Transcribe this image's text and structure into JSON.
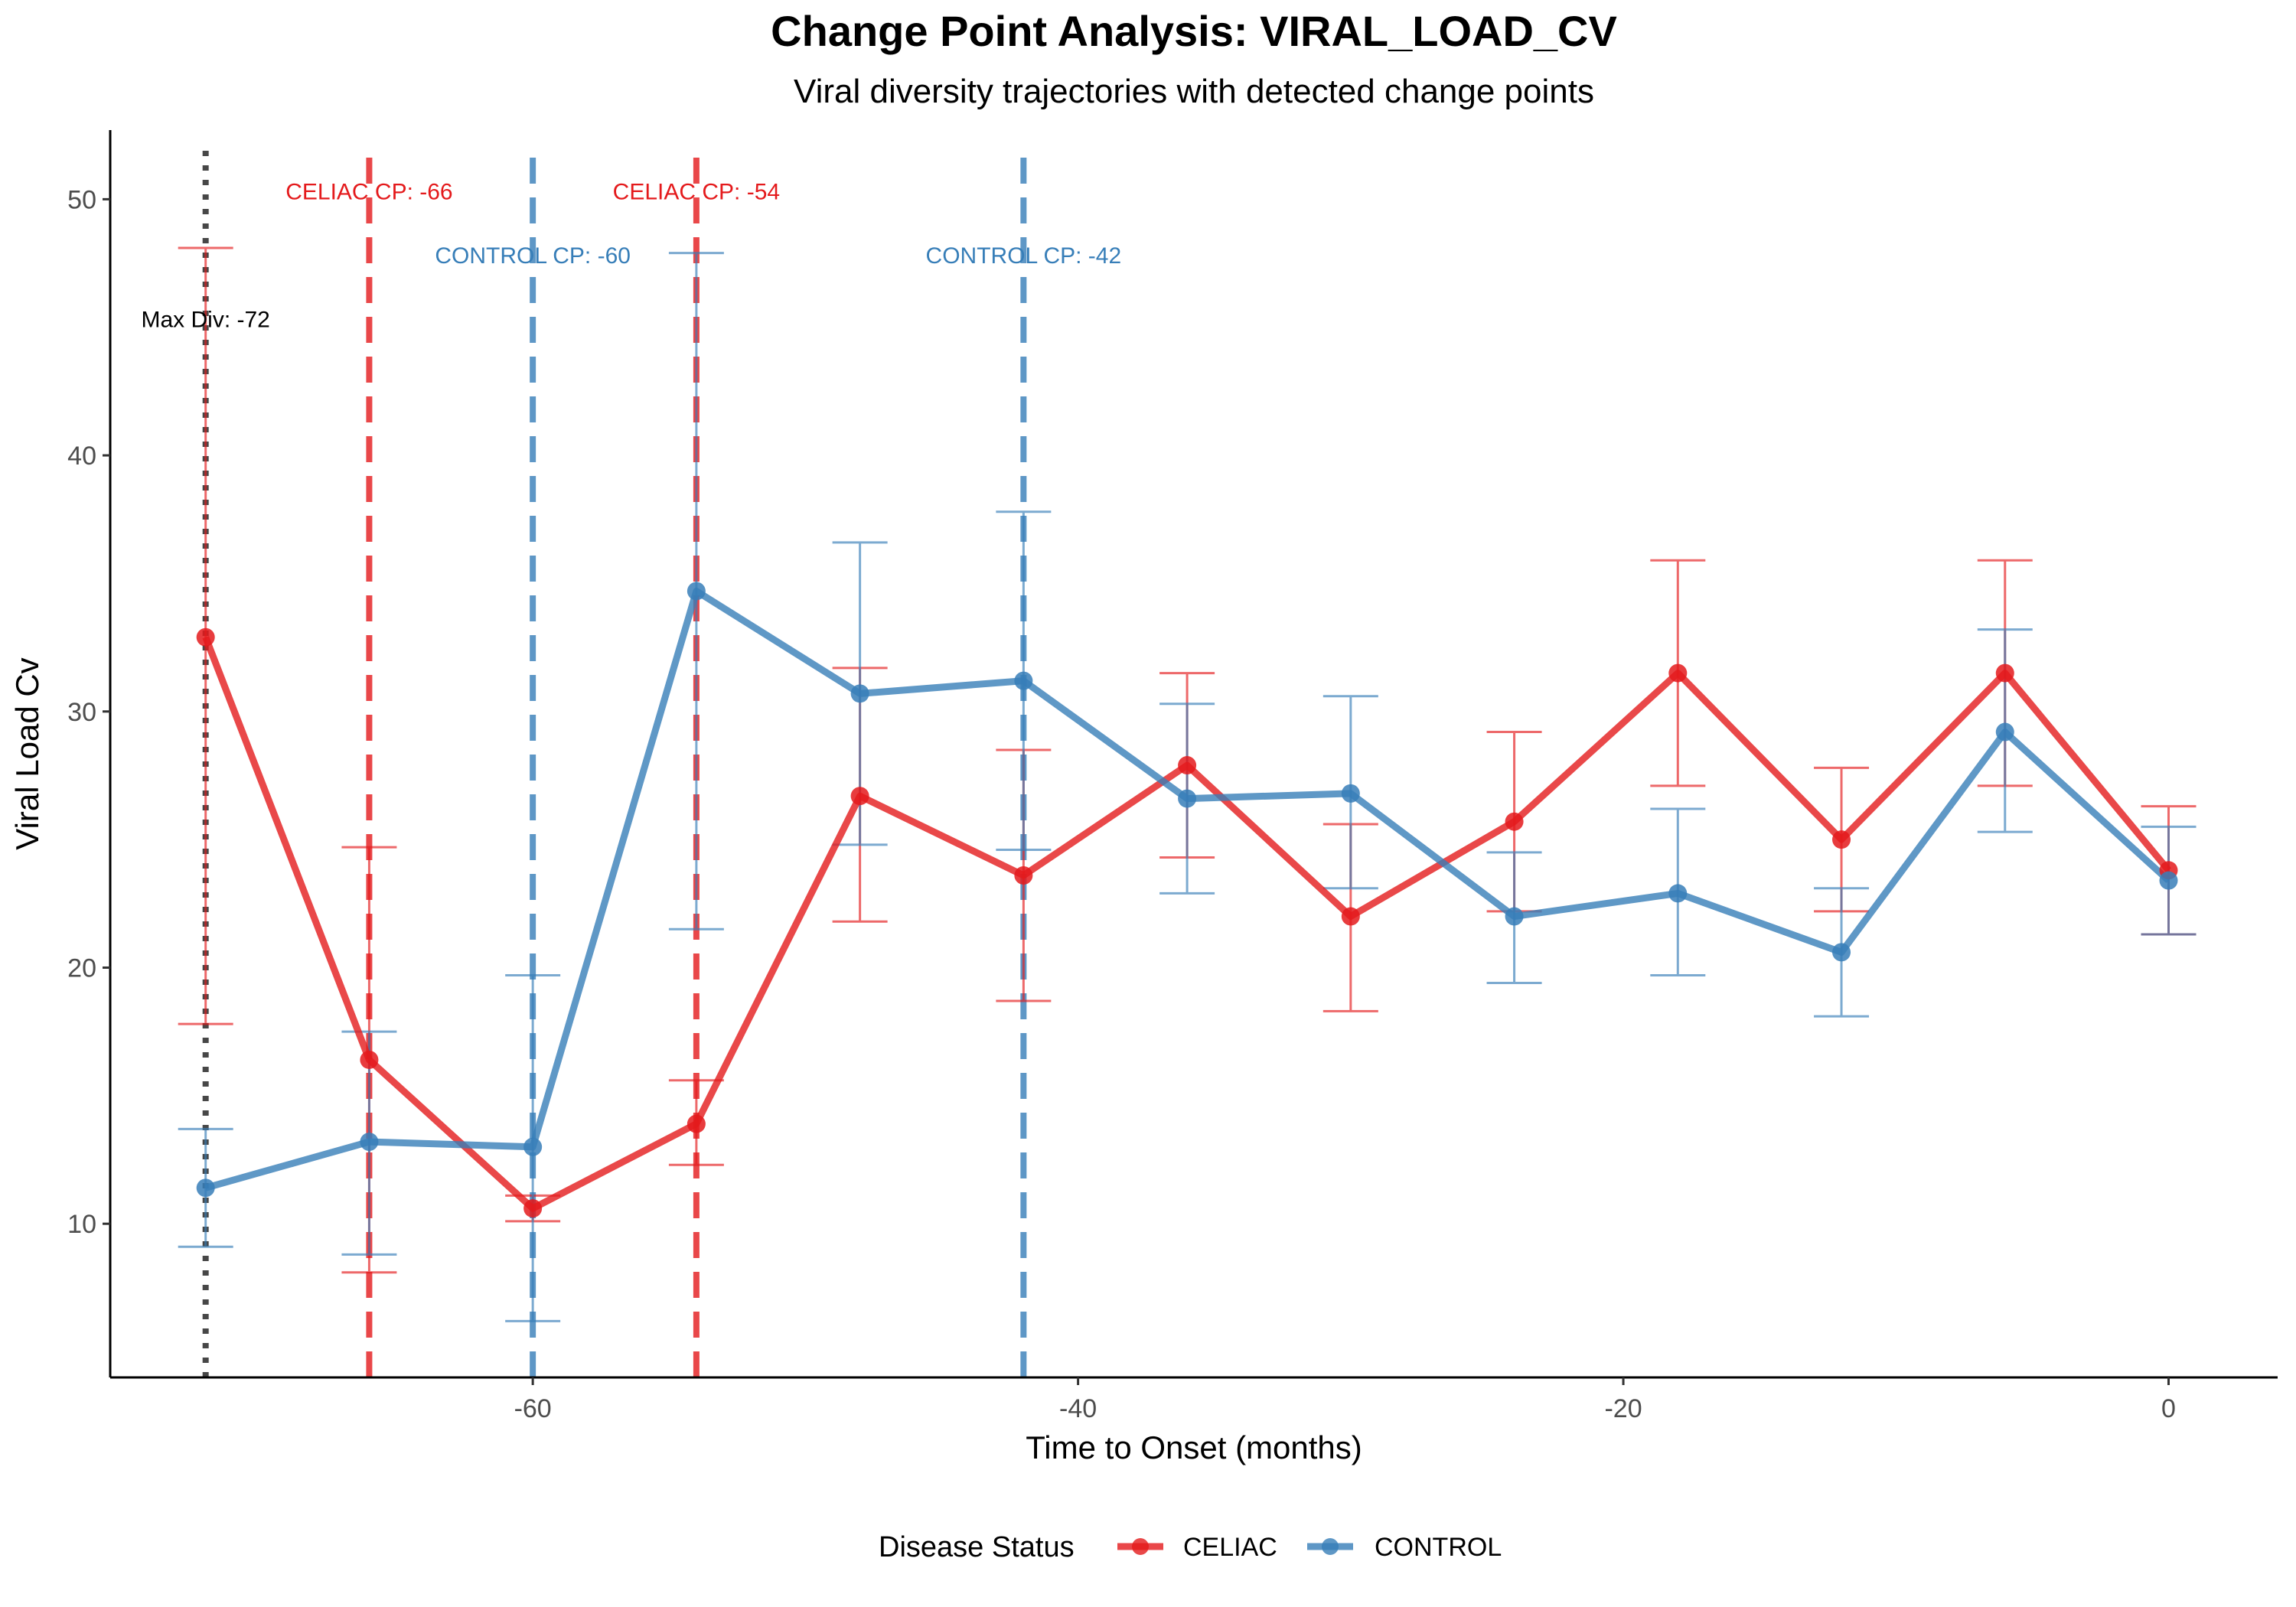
{
  "chart_data": {
    "type": "line",
    "title": "Change Point Analysis: VIRAL_LOAD_CV",
    "subtitle": "Viral diversity trajectories with detected change points",
    "xlabel": "Time to Onset (months)",
    "ylabel": "Viral Load Cv",
    "xlim": [
      -75.5,
      4
    ],
    "ylim": [
      4,
      52.7
    ],
    "x_ticks": [
      -60,
      -40,
      -20,
      0
    ],
    "x_tick_labels": [
      "-60",
      "-40",
      "-20",
      "0"
    ],
    "y_ticks": [
      10,
      20,
      30,
      40,
      50
    ],
    "y_tick_labels": [
      "10",
      "20",
      "30",
      "40",
      "50"
    ],
    "grid": false,
    "legend": {
      "title": "Disease Status",
      "position": "bottom",
      "entries": [
        "CELIAC",
        "CONTROL"
      ]
    },
    "x": [
      -72,
      -66,
      -60,
      -54,
      -48,
      -42,
      -36,
      -30,
      -24,
      -18,
      -12,
      -6,
      0
    ],
    "series": [
      {
        "name": "CELIAC",
        "color": "#e41a1c",
        "values": [
          32.9,
          16.4,
          10.6,
          13.9,
          26.7,
          23.6,
          27.9,
          22.0,
          25.7,
          31.5,
          25.0,
          31.5,
          23.8
        ],
        "err_low": [
          17.8,
          8.1,
          10.1,
          12.3,
          21.8,
          18.7,
          24.3,
          18.3,
          22.2,
          27.1,
          22.2,
          27.1,
          21.3
        ],
        "err_high": [
          48.1,
          24.7,
          11.1,
          15.6,
          31.7,
          28.5,
          31.5,
          25.6,
          29.2,
          35.9,
          27.8,
          35.9,
          26.3
        ]
      },
      {
        "name": "CONTROL",
        "color": "#377eb8",
        "values": [
          11.4,
          13.2,
          13.0,
          34.7,
          30.7,
          31.2,
          26.6,
          26.8,
          22.0,
          22.9,
          20.6,
          29.2,
          23.4
        ],
        "err_low": [
          9.1,
          8.8,
          6.2,
          21.5,
          24.8,
          24.6,
          22.9,
          23.1,
          19.4,
          19.7,
          18.1,
          25.3,
          21.3
        ],
        "err_high": [
          13.7,
          17.5,
          19.7,
          47.9,
          36.6,
          37.8,
          30.3,
          30.6,
          24.5,
          26.2,
          23.1,
          33.2,
          25.5
        ]
      }
    ],
    "vlines": [
      {
        "x": -72,
        "style": "dotted",
        "color": "#1a1a1a",
        "label": "Max Div: -72",
        "label_x": -72,
        "label_y": 45.3
      },
      {
        "x": -66,
        "style": "dashed",
        "color": "#e41a1c",
        "label": "CELIAC CP: -66",
        "label_x": -66,
        "label_y": 50.3
      },
      {
        "x": -60,
        "style": "dashed",
        "color": "#377eb8",
        "label": "CONTROL CP: -60",
        "label_x": -60,
        "label_y": 47.8
      },
      {
        "x": -54,
        "style": "dashed",
        "color": "#e41a1c",
        "label": "CELIAC CP: -54",
        "label_x": -54,
        "label_y": 50.3
      },
      {
        "x": -42,
        "style": "dashed",
        "color": "#377eb8",
        "label": "CONTROL CP: -42",
        "label_x": -42,
        "label_y": 47.8
      }
    ]
  }
}
